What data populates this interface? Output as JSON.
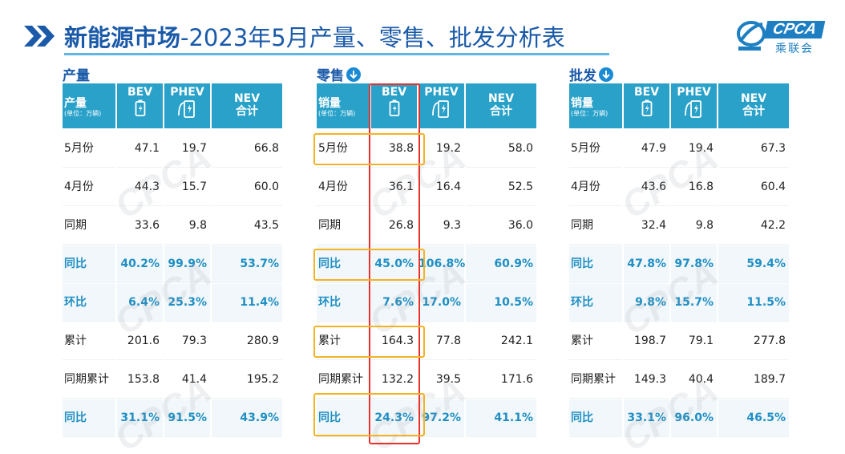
{
  "header": {
    "title_bold": "新能源市场",
    "title_rest": "-2023年5月产量、零售、批发分析表"
  },
  "logo": {
    "brand": "CPCA",
    "brand_cn": "乘联会",
    "watermark": "CPCA"
  },
  "sections": [
    {
      "label": "产量",
      "has_arrow": false,
      "unit_header": "产量",
      "unit_sub": "(单位：万辆)",
      "columns": [
        "BEV",
        "PHEV",
        "NEV"
      ],
      "nev_sub": "合计",
      "rows": [
        {
          "label": "5月份",
          "values": [
            "47.1",
            "19.7",
            "66.8"
          ],
          "hl": false
        },
        {
          "label": "4月份",
          "values": [
            "44.3",
            "15.7",
            "60.0"
          ],
          "hl": false
        },
        {
          "label": "同期",
          "values": [
            "33.6",
            "9.8",
            "43.5"
          ],
          "hl": false
        },
        {
          "label": "同比",
          "values": [
            "40.2%",
            "99.9%",
            "53.7%"
          ],
          "hl": true
        },
        {
          "label": "环比",
          "values": [
            "6.4%",
            "25.3%",
            "11.4%"
          ],
          "hl": true
        },
        {
          "label": "累计",
          "values": [
            "201.6",
            "79.3",
            "280.9"
          ],
          "hl": false
        },
        {
          "label": "同期累计",
          "values": [
            "153.8",
            "41.4",
            "195.2"
          ],
          "hl": false
        },
        {
          "label": "同比",
          "values": [
            "31.1%",
            "91.5%",
            "43.9%"
          ],
          "hl": true
        }
      ]
    },
    {
      "label": "零售",
      "has_arrow": true,
      "unit_header": "销量",
      "unit_sub": "(单位：万辆)",
      "columns": [
        "BEV",
        "PHEV",
        "NEV"
      ],
      "nev_sub": "合计",
      "rows": [
        {
          "label": "5月份",
          "values": [
            "38.8",
            "19.2",
            "58.0"
          ],
          "hl": false
        },
        {
          "label": "4月份",
          "values": [
            "36.1",
            "16.4",
            "52.5"
          ],
          "hl": false
        },
        {
          "label": "同期",
          "values": [
            "26.8",
            "9.3",
            "36.0"
          ],
          "hl": false
        },
        {
          "label": "同比",
          "values": [
            "45.0%",
            "106.8%",
            "60.9%"
          ],
          "hl": true
        },
        {
          "label": "环比",
          "values": [
            "7.6%",
            "17.0%",
            "10.5%"
          ],
          "hl": true
        },
        {
          "label": "累计",
          "values": [
            "164.3",
            "77.8",
            "242.1"
          ],
          "hl": false
        },
        {
          "label": "同期累计",
          "values": [
            "132.2",
            "39.5",
            "171.6"
          ],
          "hl": false
        },
        {
          "label": "同比",
          "values": [
            "24.3%",
            "97.2%",
            "41.1%"
          ],
          "hl": true
        }
      ]
    },
    {
      "label": "批发",
      "has_arrow": true,
      "unit_header": "销量",
      "unit_sub": "(单位：万辆)",
      "columns": [
        "BEV",
        "PHEV",
        "NEV"
      ],
      "nev_sub": "合计",
      "rows": [
        {
          "label": "5月份",
          "values": [
            "47.9",
            "19.4",
            "67.3"
          ],
          "hl": false
        },
        {
          "label": "4月份",
          "values": [
            "43.6",
            "16.8",
            "60.4"
          ],
          "hl": false
        },
        {
          "label": "同期",
          "values": [
            "32.4",
            "9.8",
            "42.2"
          ],
          "hl": false
        },
        {
          "label": "同比",
          "values": [
            "47.8%",
            "97.8%",
            "59.4%"
          ],
          "hl": true
        },
        {
          "label": "环比",
          "values": [
            "9.8%",
            "15.7%",
            "11.5%"
          ],
          "hl": true
        },
        {
          "label": "累计",
          "values": [
            "198.7",
            "79.1",
            "277.8"
          ],
          "hl": false
        },
        {
          "label": "同期累计",
          "values": [
            "149.3",
            "40.4",
            "189.7"
          ],
          "hl": false
        },
        {
          "label": "同比",
          "values": [
            "33.1%",
            "96.0%",
            "46.5%"
          ],
          "hl": true
        }
      ]
    }
  ],
  "colors": {
    "title": "#1a5aa8",
    "header_bg": "#29a1c9",
    "highlight": "#1f8fc4",
    "red_box": "#e8302c",
    "yellow_box": "#f4b323"
  }
}
